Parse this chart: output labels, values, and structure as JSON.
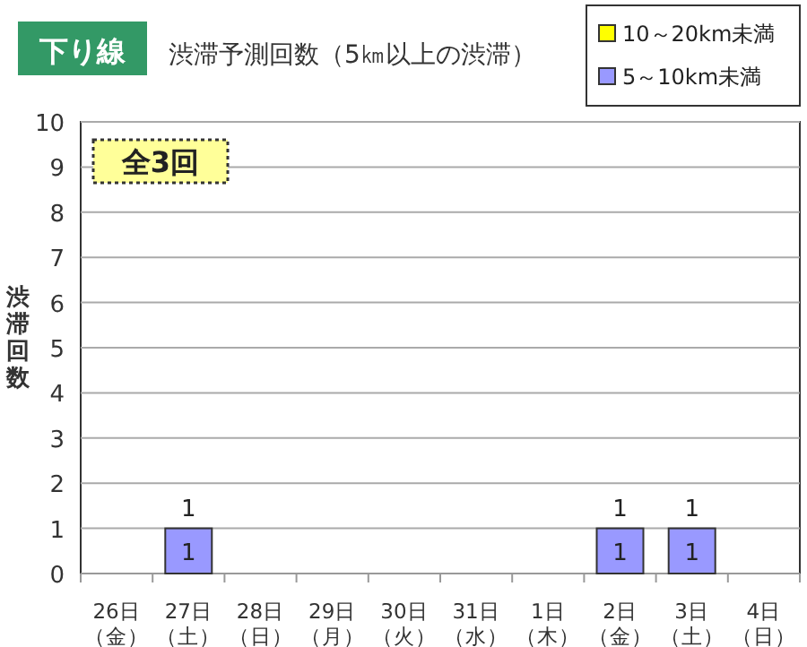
{
  "chart_data": {
    "type": "bar",
    "stacked": true,
    "subtitle": "下り線",
    "title": "渋滞予測回数（5㎞以上の渋滞）",
    "ylabel": "渋滞回数",
    "categories": [
      "26日（金）",
      "27日（土）",
      "28日（日）",
      "29日（月）",
      "30日（火）",
      "31日（水）",
      "1日（木）",
      "2日（金）",
      "3日（土）",
      "4日（日）"
    ],
    "series": [
      {
        "name": "5～10km未満",
        "color": "#9999ff",
        "values": [
          0,
          1,
          0,
          0,
          0,
          0,
          0,
          1,
          1,
          0
        ],
        "value_labels": [
          null,
          "1",
          null,
          null,
          null,
          null,
          null,
          "1",
          "1",
          null
        ]
      },
      {
        "name": "10～20km未満",
        "color": "#ffff00",
        "values": [
          0,
          0,
          0,
          0,
          0,
          0,
          0,
          0,
          0,
          0
        ]
      }
    ],
    "totals": [
      null,
      "1",
      null,
      null,
      null,
      null,
      null,
      "1",
      "1",
      null
    ],
    "annotations": [
      "全3回"
    ],
    "ylim": [
      0,
      10
    ],
    "yticks": [
      0,
      1,
      2,
      3,
      4,
      5,
      6,
      7,
      8,
      9,
      10
    ],
    "grid": "y",
    "legend": "top right"
  }
}
